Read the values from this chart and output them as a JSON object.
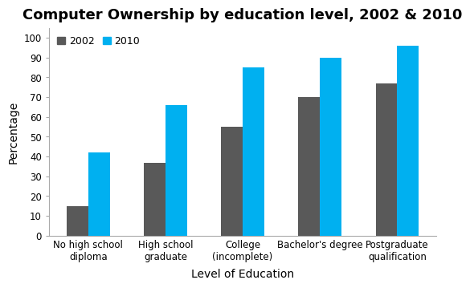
{
  "title": "Computer Ownership by education level, 2002 & 2010",
  "xlabel": "Level of Education",
  "ylabel": "Percentage",
  "categories": [
    "No high school\ndiploma",
    "High school\ngraduate",
    "College\n(incomplete)",
    "Bachelor's degree",
    "Postgraduate\nqualification"
  ],
  "series": {
    "2002": [
      15,
      37,
      55,
      70,
      77
    ],
    "2010": [
      42,
      66,
      85,
      90,
      96
    ]
  },
  "colors": {
    "2002": "#595959",
    "2010": "#00B0F0"
  },
  "ylim": [
    0,
    105
  ],
  "yticks": [
    0,
    10,
    20,
    30,
    40,
    50,
    60,
    70,
    80,
    90,
    100
  ],
  "legend_labels": [
    "2002",
    "2010"
  ],
  "bar_width": 0.28,
  "title_fontsize": 13,
  "axis_label_fontsize": 10,
  "tick_fontsize": 8.5,
  "legend_fontsize": 9,
  "background_color": "#ffffff"
}
